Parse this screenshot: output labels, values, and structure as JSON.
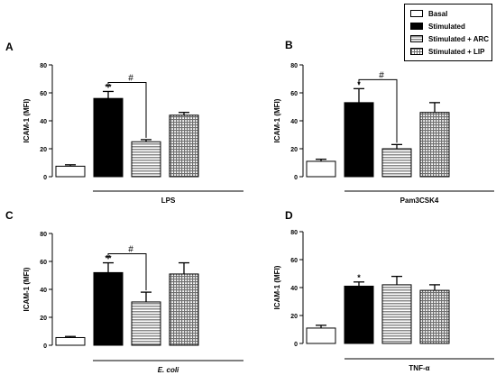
{
  "legend": [
    {
      "name": "Basal",
      "pattern": "white"
    },
    {
      "name": "Stimulated",
      "pattern": "black"
    },
    {
      "name": "Stimulated + ARC",
      "pattern": "hstripe"
    },
    {
      "name": "Stimulated + LIP",
      "pattern": "grid"
    }
  ],
  "colors": {
    "bar_black": "#000000",
    "bar_white": "#ffffff",
    "stripe_gray": "#9a9a9a",
    "axis": "#000000"
  },
  "chart_data": [
    {
      "type": "bar",
      "panel_label": "A",
      "ylabel": "ICAM-1  (MFI)",
      "ylim": [
        0,
        80
      ],
      "yticks": [
        0,
        20,
        40,
        60,
        80
      ],
      "group_label": "LPS",
      "group_italic": false,
      "series": [
        {
          "name": "Basal",
          "value": 7.5,
          "error": 1
        },
        {
          "name": "Stimulated",
          "value": 56,
          "error": 5,
          "annotation": "**"
        },
        {
          "name": "Stimulated + ARC",
          "value": 25,
          "error": 1.5
        },
        {
          "name": "Stimulated + LIP",
          "value": 44,
          "error": 2
        }
      ],
      "bracket": {
        "from": 1,
        "to": 2,
        "label": "#"
      }
    },
    {
      "type": "bar",
      "panel_label": "B",
      "ylabel": "ICAM-1  (MFI)",
      "ylim": [
        0,
        80
      ],
      "yticks": [
        0,
        20,
        40,
        60,
        80
      ],
      "group_label": "Pam3CSK4",
      "group_italic": false,
      "series": [
        {
          "name": "Basal",
          "value": 11,
          "error": 1.5
        },
        {
          "name": "Stimulated",
          "value": 53,
          "error": 10,
          "annotation": "*"
        },
        {
          "name": "Stimulated + ARC",
          "value": 20,
          "error": 3
        },
        {
          "name": "Stimulated + LIP",
          "value": 46,
          "error": 7
        }
      ],
      "bracket": {
        "from": 1,
        "to": 2,
        "label": "#"
      }
    },
    {
      "type": "bar",
      "panel_label": "C",
      "ylabel": "ICAM-1  (MFI)",
      "ylim": [
        0,
        80
      ],
      "yticks": [
        0,
        20,
        40,
        60,
        80
      ],
      "group_label": "E. coli",
      "group_italic": true,
      "series": [
        {
          "name": "Basal",
          "value": 5.5,
          "error": 0.8
        },
        {
          "name": "Stimulated",
          "value": 52,
          "error": 7,
          "annotation": "**"
        },
        {
          "name": "Stimulated + ARC",
          "value": 31,
          "error": 7
        },
        {
          "name": "Stimulated + LIP",
          "value": 51,
          "error": 8
        }
      ],
      "bracket": {
        "from": 1,
        "to": 2,
        "label": "#"
      }
    },
    {
      "type": "bar",
      "panel_label": "D",
      "ylabel": "ICAM-1  (MFI)",
      "ylim": [
        0,
        80
      ],
      "yticks": [
        0,
        20,
        40,
        60,
        80
      ],
      "group_label": "TNF-α",
      "group_italic": false,
      "series": [
        {
          "name": "Basal",
          "value": 11,
          "error": 2
        },
        {
          "name": "Stimulated",
          "value": 41,
          "error": 3,
          "annotation": "*"
        },
        {
          "name": "Stimulated + ARC",
          "value": 42,
          "error": 6
        },
        {
          "name": "Stimulated + LIP",
          "value": 38,
          "error": 4
        }
      ]
    }
  ]
}
